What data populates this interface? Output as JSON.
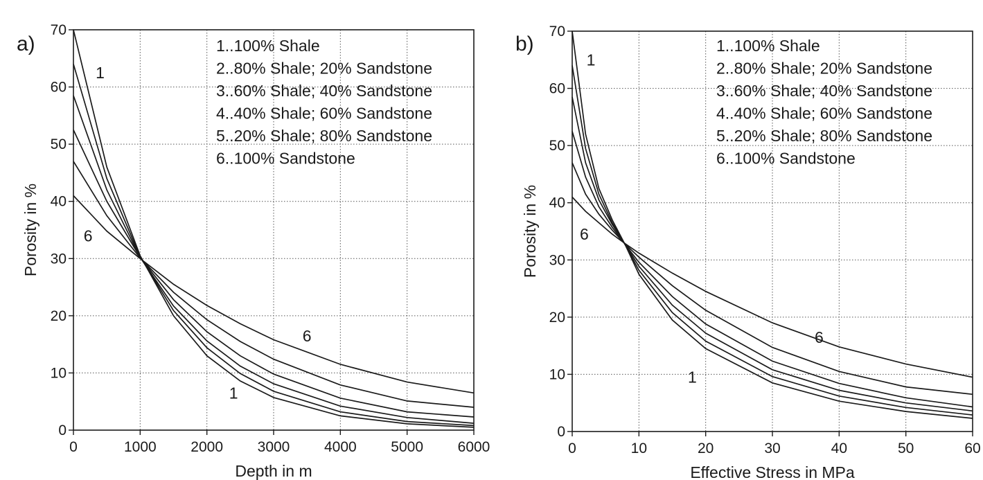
{
  "chart_data": [
    {
      "type": "line",
      "panel_label": "a)",
      "xlabel": "Depth in m",
      "ylabel": "Porosity in %",
      "xlim": [
        0,
        6000
      ],
      "ylim": [
        0,
        70
      ],
      "xticks": [
        0,
        1000,
        2000,
        3000,
        4000,
        5000,
        6000
      ],
      "yticks": [
        0,
        10,
        20,
        30,
        40,
        50,
        60,
        70
      ],
      "grid": true,
      "legend_position": "top-right",
      "legend": [
        "1..100% Shale",
        "2..80% Shale; 20% Sandstone",
        "3..60% Shale; 40% Sandstone",
        "4..40% Shale; 60% Sandstone",
        "5..20% Shale; 80% Sandstone",
        "6..100% Sandstone"
      ],
      "series": [
        {
          "name": "1",
          "x": [
            0,
            500,
            1000,
            1500,
            2000,
            2500,
            3000,
            4000,
            5000,
            6000
          ],
          "values": [
            70,
            46,
            30.5,
            20,
            13,
            8.6,
            5.7,
            2.5,
            1.1,
            0.5
          ]
        },
        {
          "name": "2",
          "x": [
            0,
            500,
            1000,
            1500,
            2000,
            2500,
            3000,
            4000,
            5000,
            6000
          ],
          "values": [
            64,
            44,
            30.3,
            20.9,
            14.4,
            9.9,
            6.8,
            3.2,
            1.5,
            0.8
          ]
        },
        {
          "name": "3",
          "x": [
            0,
            500,
            1000,
            1500,
            2000,
            2500,
            3000,
            4000,
            5000,
            6000
          ],
          "values": [
            58.5,
            42,
            30.2,
            21.7,
            15.6,
            11.2,
            8.1,
            4.2,
            2.2,
            1.2
          ]
        },
        {
          "name": "4",
          "x": [
            0,
            500,
            1000,
            1500,
            2000,
            2500,
            3000,
            4000,
            5000,
            6000
          ],
          "values": [
            52.5,
            40,
            30.2,
            22.8,
            17.2,
            13,
            9.8,
            5.6,
            3.2,
            2.3
          ]
        },
        {
          "name": "5",
          "x": [
            0,
            500,
            1000,
            1500,
            2000,
            2500,
            3000,
            4000,
            5000,
            6000
          ],
          "values": [
            47,
            37.5,
            30.1,
            24.1,
            19.3,
            15.5,
            12.4,
            7.9,
            5.1,
            4
          ]
        },
        {
          "name": "6",
          "x": [
            0,
            500,
            1000,
            1500,
            2000,
            2500,
            3000,
            4000,
            5000,
            6000
          ],
          "values": [
            41,
            34.8,
            30,
            25.5,
            21.8,
            18.6,
            15.8,
            11.5,
            8.4,
            6.5
          ]
        }
      ],
      "curve_labels": [
        {
          "text": "1",
          "x": 400,
          "y": 62.5
        },
        {
          "text": "6",
          "x": 220,
          "y": 34
        },
        {
          "text": "6",
          "x": 3500,
          "y": 16.5
        },
        {
          "text": "1",
          "x": 2400,
          "y": 6.5
        }
      ]
    },
    {
      "type": "line",
      "panel_label": "b)",
      "xlabel": "Effective Stress in MPa",
      "ylabel": "Porosity in %",
      "xlim": [
        0,
        60
      ],
      "ylim": [
        0,
        70
      ],
      "xticks": [
        0,
        10,
        20,
        30,
        40,
        50,
        60
      ],
      "yticks": [
        0,
        10,
        20,
        30,
        40,
        50,
        60,
        70
      ],
      "grid": true,
      "legend_position": "top-right",
      "legend": [
        "1..100% Shale",
        "2..80% Shale; 20% Sandstone",
        "3..60% Shale; 40% Sandstone",
        "4..40% Shale; 60% Sandstone",
        "5..20% Shale; 80% Sandstone",
        "6..100% Sandstone"
      ],
      "series": [
        {
          "name": "1",
          "x": [
            0,
            2,
            4,
            6,
            8,
            10,
            15,
            20,
            30,
            40,
            50,
            60
          ],
          "values": [
            70,
            52,
            42.5,
            37,
            32.5,
            27.5,
            19.5,
            14.5,
            8.5,
            5.3,
            3.5,
            2.3
          ]
        },
        {
          "name": "2",
          "x": [
            0,
            2,
            4,
            6,
            8,
            10,
            15,
            20,
            30,
            40,
            50,
            60
          ],
          "values": [
            64,
            49.5,
            41.5,
            36.5,
            32.5,
            28.2,
            20.8,
            15.8,
            9.6,
            6.2,
            4.2,
            2.9
          ]
        },
        {
          "name": "3",
          "x": [
            0,
            2,
            4,
            6,
            8,
            10,
            15,
            20,
            30,
            40,
            50,
            60
          ],
          "values": [
            58.5,
            47,
            40.5,
            36.2,
            32.6,
            28.9,
            22.1,
            17.2,
            10.8,
            7.2,
            5,
            3.6
          ]
        },
        {
          "name": "4",
          "x": [
            0,
            2,
            4,
            6,
            8,
            10,
            15,
            20,
            30,
            40,
            50,
            60
          ],
          "values": [
            52.5,
            44.5,
            39.3,
            35.7,
            32.6,
            29.6,
            23.6,
            18.8,
            12.3,
            8.4,
            5.9,
            4.3
          ]
        },
        {
          "name": "5",
          "x": [
            0,
            2,
            4,
            6,
            8,
            10,
            15,
            20,
            30,
            40,
            50,
            60
          ],
          "values": [
            47,
            41.5,
            38,
            35.2,
            32.7,
            30.5,
            25.5,
            21.2,
            14.7,
            10.5,
            7.8,
            6.5
          ]
        },
        {
          "name": "6",
          "x": [
            0,
            2,
            4,
            6,
            8,
            10,
            15,
            20,
            30,
            40,
            50,
            60
          ],
          "values": [
            41,
            38.5,
            36.5,
            34.5,
            32.8,
            31.2,
            27.7,
            24.5,
            19,
            14.8,
            11.8,
            9.5
          ]
        }
      ],
      "curve_labels": [
        {
          "text": "1",
          "x": 2.8,
          "y": 65
        },
        {
          "text": "6",
          "x": 1.8,
          "y": 34.5
        },
        {
          "text": "6",
          "x": 37,
          "y": 16.5
        },
        {
          "text": "1",
          "x": 18,
          "y": 9.5
        }
      ]
    }
  ]
}
